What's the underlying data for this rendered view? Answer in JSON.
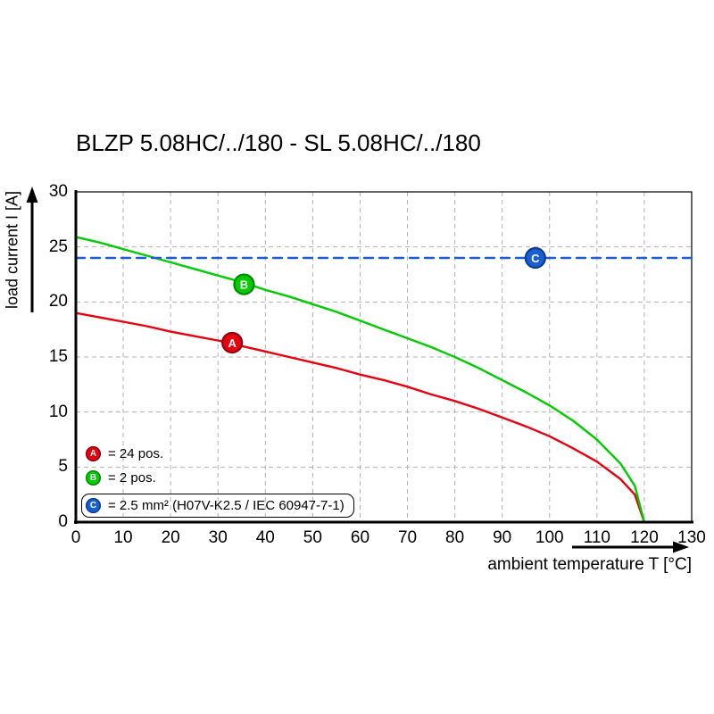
{
  "title": "BLZP 5.08HC/../180 - SL 5.08HC/../180",
  "chart_data": {
    "type": "line",
    "title": "BLZP 5.08HC/../180 - SL 5.08HC/../180",
    "xlabel": "ambient temperature T [°C]",
    "ylabel": "load current I [A]",
    "xlim": [
      0,
      130
    ],
    "ylim": [
      0,
      30
    ],
    "xticks": [
      0,
      10,
      20,
      30,
      40,
      50,
      60,
      70,
      80,
      90,
      100,
      110,
      120,
      130
    ],
    "yticks": [
      0,
      5,
      10,
      15,
      20,
      25,
      30
    ],
    "grid": true,
    "legend_position": "lower-left-inside",
    "series": [
      {
        "name": "A",
        "label": "= 24 pos.",
        "color": "#e8000f",
        "ring": "#8f0012",
        "style": "solid",
        "marker": {
          "x": 33,
          "y": 16.3,
          "label": "A"
        },
        "points": [
          [
            0,
            19
          ],
          [
            5,
            18.6
          ],
          [
            10,
            18.2
          ],
          [
            15,
            17.8
          ],
          [
            20,
            17.3
          ],
          [
            25,
            16.9
          ],
          [
            30,
            16.5
          ],
          [
            35,
            16
          ],
          [
            40,
            15.5
          ],
          [
            45,
            15
          ],
          [
            50,
            14.5
          ],
          [
            55,
            14
          ],
          [
            60,
            13.4
          ],
          [
            65,
            12.9
          ],
          [
            70,
            12.3
          ],
          [
            75,
            11.6
          ],
          [
            80,
            11
          ],
          [
            85,
            10.3
          ],
          [
            90,
            9.5
          ],
          [
            95,
            8.7
          ],
          [
            100,
            7.8
          ],
          [
            105,
            6.7
          ],
          [
            110,
            5.5
          ],
          [
            115,
            3.9
          ],
          [
            118,
            2.5
          ],
          [
            120,
            0
          ]
        ]
      },
      {
        "name": "B",
        "label": "= 2 pos.",
        "color": "#00cc00",
        "ring": "#008a00",
        "style": "solid",
        "marker": {
          "x": 35.5,
          "y": 21.6,
          "label": "B"
        },
        "points": [
          [
            0,
            25.9
          ],
          [
            5,
            25.4
          ],
          [
            10,
            24.8
          ],
          [
            15,
            24.2
          ],
          [
            20,
            23.6
          ],
          [
            25,
            23
          ],
          [
            30,
            22.4
          ],
          [
            35,
            21.8
          ],
          [
            40,
            21.1
          ],
          [
            45,
            20.5
          ],
          [
            50,
            19.8
          ],
          [
            55,
            19.1
          ],
          [
            60,
            18.3
          ],
          [
            65,
            17.5
          ],
          [
            70,
            16.7
          ],
          [
            75,
            15.9
          ],
          [
            80,
            15
          ],
          [
            85,
            14
          ],
          [
            90,
            12.9
          ],
          [
            95,
            11.8
          ],
          [
            100,
            10.6
          ],
          [
            105,
            9.2
          ],
          [
            110,
            7.5
          ],
          [
            115,
            5.3
          ],
          [
            118,
            3.3
          ],
          [
            120,
            0
          ]
        ]
      },
      {
        "name": "C",
        "label": "= 2.5 mm² (H07V-K2.5 / IEC 60947-7-1)",
        "color": "#1a5fd2",
        "ring": "#0a3c8f",
        "style": "dashed",
        "dash": "10 7",
        "marker": {
          "x": 97,
          "y": 24,
          "label": "C"
        },
        "points": [
          [
            0,
            24
          ],
          [
            130,
            24
          ]
        ]
      }
    ]
  }
}
